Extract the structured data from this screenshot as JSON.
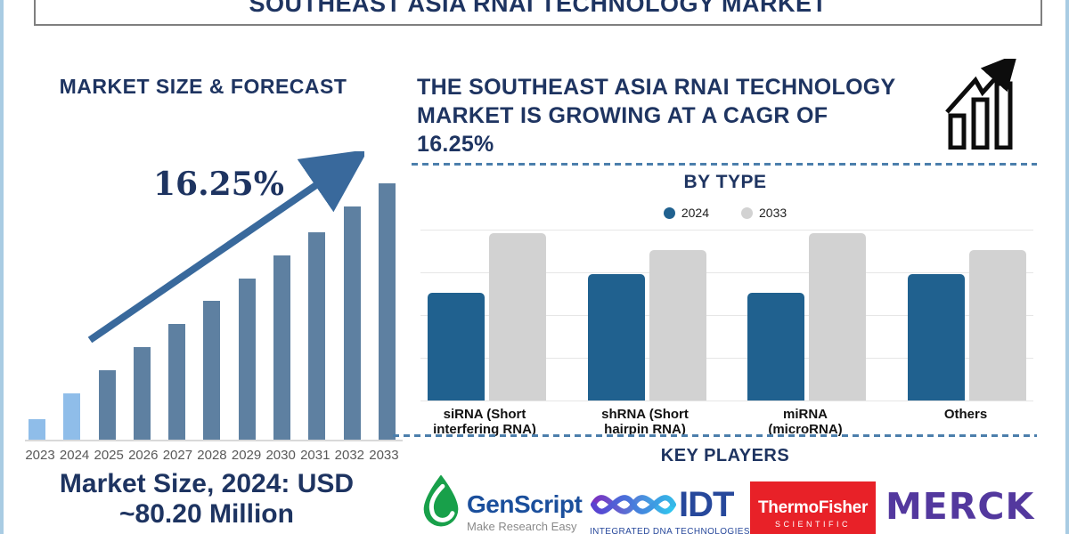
{
  "header": {
    "title": "SOUTHEAST ASIA RNAI TECHNOLOGY MARKET"
  },
  "left_panel": {
    "heading": "MARKET SIZE & FORECAST",
    "growth_label": "16.25%",
    "market_size_note": "Market Size, 2024: USD\n~80.20 Million"
  },
  "right_panel": {
    "cagr_statement": "THE SOUTHEAST ASIA RNAI TECHNOLOGY\nMARKET IS GROWING AT A CAGR OF\n16.25%",
    "by_type": {
      "heading": "BY TYPE",
      "category_labels": [
        "siRNA (Short\ninterfering RNA)",
        "shRNA (Short\nhairpin RNA)",
        "miRNA\n(microRNA)",
        "Others"
      ]
    },
    "key_players": {
      "heading": "KEY PLAYERS",
      "players": [
        {
          "name": "GenScript",
          "tagline": "Make Research Easy"
        },
        {
          "name": "IDT",
          "caption": "INTEGRATED DNA TECHNOLOGIES"
        },
        {
          "name": "ThermoFisher",
          "subtext": "SCIENTIFIC"
        },
        {
          "name": "MERCK"
        }
      ]
    }
  },
  "colors": {
    "navy": "#1E3461",
    "frame_blue": "#A9CCE3",
    "bar_light_blue": "#8FBDE9",
    "bar_steel_blue": "#5E80A1",
    "arrow_blue": "#39699C",
    "axis_gray": "#D9D9D9",
    "gridline": "#E6E6E6",
    "year_text": "#595959",
    "bar_2024_blue": "#20618F",
    "bar_2033_gray": "#D2D2D2",
    "dashed_line": "#4C7FAC",
    "thermo_red": "#E82128",
    "merck_purple": "#53389E",
    "genscript_green": "#18A04A",
    "genscript_blue": "#1B4F9C",
    "idt_blue": "#27489B"
  },
  "chart_data": [
    {
      "type": "bar",
      "title": "MARKET SIZE & FORECAST",
      "categories": [
        "2023",
        "2024",
        "2025",
        "2026",
        "2027",
        "2028",
        "2029",
        "2030",
        "2031",
        "2032",
        "2033"
      ],
      "values": [
        8,
        18,
        27,
        36,
        45,
        54,
        63,
        72,
        81,
        91,
        100
      ],
      "values_note": "y-axis unlabeled; values are relative bar heights (% of 2033 bar)",
      "annotations": [
        "16.25%",
        "Market Size, 2024: USD ~80.20 Million"
      ],
      "highlight": "2023 and 2024 bars light blue, 2025-2033 bars steel blue",
      "xlabel": "",
      "ylabel": "",
      "grid": false,
      "legend_position": "none"
    },
    {
      "type": "bar",
      "title": "BY TYPE",
      "categories": [
        "siRNA (Short interfering RNA)",
        "shRNA (Short hairpin RNA)",
        "miRNA (microRNA)",
        "Others"
      ],
      "series": [
        {
          "name": "2024",
          "values": [
            63,
            74,
            63,
            74
          ]
        },
        {
          "name": "2033",
          "values": [
            98,
            88,
            98,
            88
          ]
        }
      ],
      "values_note": "y-axis unlabeled; values are relative bar heights (% of top gridline)",
      "xlabel": "",
      "ylabel": "",
      "grid": true,
      "legend_position": "top"
    }
  ]
}
